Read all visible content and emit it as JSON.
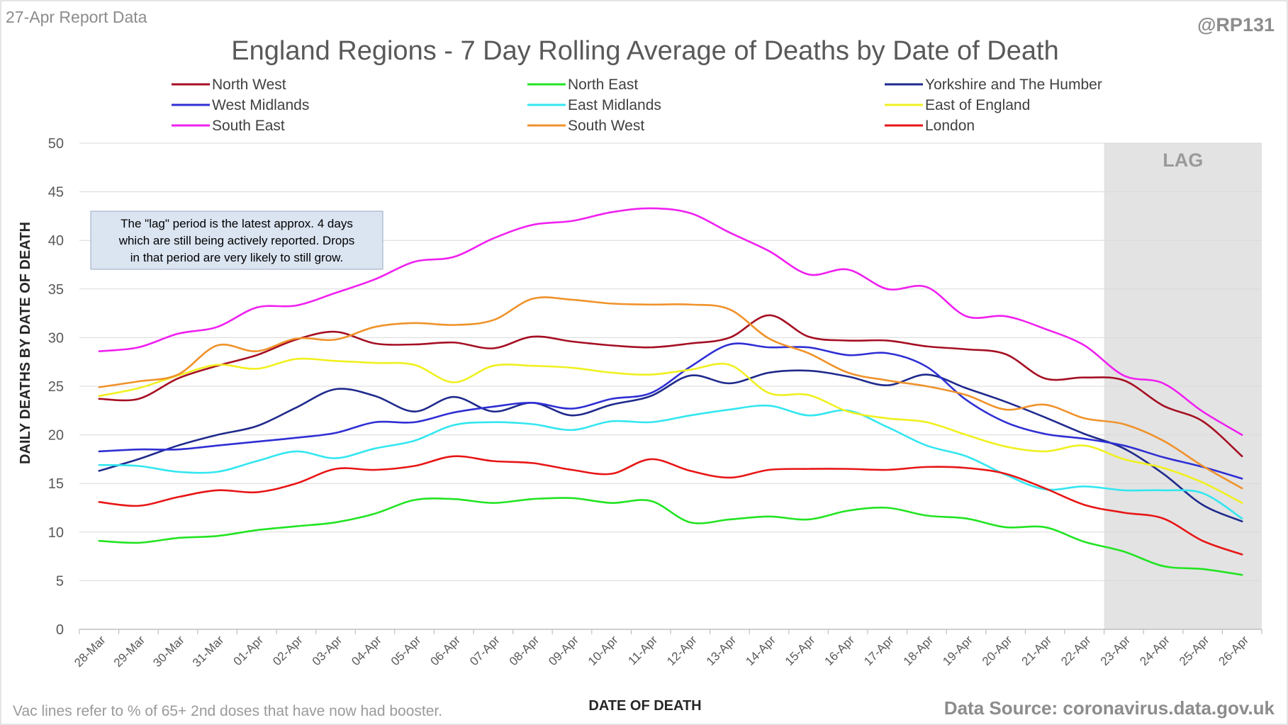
{
  "header": {
    "report_label": "27-Apr Report Data",
    "handle": "@RP131"
  },
  "footer": {
    "note": "Vac lines refer to % of 65+ 2nd doses that have now had booster.",
    "source": "Data Source: coronavirus.data.gov.uk"
  },
  "lag_box": {
    "label": "LAG",
    "start_category": "23-Apr",
    "fill_color": "#e3e3e3"
  },
  "annotation": {
    "lines": [
      "The \"lag\" period is the latest approx. 4 days",
      "which are still being actively reported.  Drops",
      "in that period are very likely to still grow."
    ],
    "fill_color": "#dbe4f1"
  },
  "chart_data": {
    "type": "line",
    "title": "England Regions - 7 Day Rolling Average of Deaths by Date of Death",
    "xlabel": "DATE OF DEATH",
    "ylabel": "DAILY DEATHS BY DATE OF DEATH",
    "ylim": [
      0,
      50
    ],
    "yticks": [
      0,
      5,
      10,
      15,
      20,
      25,
      30,
      35,
      40,
      45,
      50
    ],
    "grid": true,
    "legend_position": "top",
    "categories": [
      "28-Mar",
      "29-Mar",
      "30-Mar",
      "31-Mar",
      "01-Apr",
      "02-Apr",
      "03-Apr",
      "04-Apr",
      "05-Apr",
      "06-Apr",
      "07-Apr",
      "08-Apr",
      "09-Apr",
      "10-Apr",
      "11-Apr",
      "12-Apr",
      "13-Apr",
      "14-Apr",
      "15-Apr",
      "16-Apr",
      "17-Apr",
      "18-Apr",
      "19-Apr",
      "20-Apr",
      "21-Apr",
      "22-Apr",
      "23-Apr",
      "24-Apr",
      "25-Apr",
      "26-Apr"
    ],
    "series": [
      {
        "name": "North West",
        "color": "#a50f23",
        "values": [
          23.7,
          23.7,
          25.8,
          27.1,
          28.2,
          29.8,
          30.6,
          29.4,
          29.3,
          29.5,
          28.9,
          30.1,
          29.6,
          29.2,
          29.0,
          29.4,
          30.0,
          32.3,
          30.1,
          29.7,
          29.7,
          29.1,
          28.8,
          28.3,
          25.8,
          25.9,
          25.6,
          23.0,
          21.4,
          17.8
        ]
      },
      {
        "name": "North East",
        "color": "#22e422",
        "values": [
          9.1,
          8.9,
          9.4,
          9.6,
          10.2,
          10.6,
          11.0,
          11.9,
          13.3,
          13.4,
          13.0,
          13.4,
          13.5,
          13.0,
          13.2,
          11.0,
          11.3,
          11.6,
          11.3,
          12.2,
          12.5,
          11.7,
          11.4,
          10.5,
          10.5,
          9.0,
          8.0,
          6.5,
          6.2,
          5.6
        ]
      },
      {
        "name": "Yorkshire and The Humber",
        "color": "#1f2a8c",
        "values": [
          16.3,
          17.5,
          18.9,
          20.0,
          20.9,
          22.8,
          24.7,
          24.0,
          22.4,
          23.9,
          22.4,
          23.3,
          22.0,
          23.1,
          24.0,
          26.1,
          25.3,
          26.4,
          26.6,
          26.0,
          25.1,
          26.2,
          24.8,
          23.4,
          21.8,
          20.1,
          18.6,
          16.0,
          12.8,
          11.1
        ]
      },
      {
        "name": "West Midlands",
        "color": "#2f2fd4",
        "values": [
          18.3,
          18.5,
          18.5,
          18.9,
          19.3,
          19.7,
          20.2,
          21.3,
          21.3,
          22.3,
          22.9,
          23.3,
          22.7,
          23.7,
          24.3,
          27.0,
          29.3,
          29.0,
          29.0,
          28.2,
          28.4,
          27.0,
          23.6,
          21.3,
          20.1,
          19.6,
          18.9,
          17.7,
          16.7,
          15.5
        ]
      },
      {
        "name": "East Midlands",
        "color": "#33e6f0",
        "values": [
          16.9,
          16.8,
          16.2,
          16.2,
          17.3,
          18.3,
          17.6,
          18.6,
          19.4,
          21.0,
          21.3,
          21.1,
          20.5,
          21.4,
          21.3,
          22.0,
          22.6,
          23.0,
          22.0,
          22.5,
          20.8,
          18.9,
          17.8,
          15.9,
          14.4,
          14.7,
          14.3,
          14.3,
          14.0,
          11.4
        ]
      },
      {
        "name": "East of England",
        "color": "#f0f020",
        "values": [
          24.0,
          24.8,
          26.1,
          27.2,
          26.8,
          27.8,
          27.6,
          27.4,
          27.2,
          25.4,
          27.1,
          27.1,
          26.9,
          26.4,
          26.2,
          26.7,
          27.2,
          24.3,
          24.1,
          22.4,
          21.7,
          21.3,
          20.0,
          18.8,
          18.3,
          18.9,
          17.5,
          16.6,
          15.1,
          13.0
        ]
      },
      {
        "name": "South East",
        "color": "#f020f0",
        "values": [
          28.6,
          29.0,
          30.4,
          31.1,
          33.1,
          33.3,
          34.6,
          36.0,
          37.8,
          38.3,
          40.2,
          41.6,
          42.0,
          42.9,
          43.3,
          42.8,
          40.8,
          38.9,
          36.5,
          37.0,
          35.0,
          35.2,
          32.2,
          32.2,
          30.9,
          29.2,
          26.1,
          25.3,
          22.4,
          20.0
        ]
      },
      {
        "name": "South West",
        "color": "#f0922a",
        "values": [
          24.9,
          25.5,
          26.2,
          29.2,
          28.6,
          29.9,
          29.8,
          31.1,
          31.5,
          31.3,
          31.8,
          34.0,
          33.9,
          33.5,
          33.4,
          33.4,
          32.9,
          29.9,
          28.4,
          26.4,
          25.6,
          25.0,
          24.1,
          22.6,
          23.1,
          21.7,
          21.1,
          19.4,
          16.8,
          14.5
        ]
      },
      {
        "name": "London",
        "color": "#e81515",
        "values": [
          13.1,
          12.7,
          13.6,
          14.3,
          14.1,
          15.0,
          16.5,
          16.4,
          16.8,
          17.8,
          17.3,
          17.1,
          16.4,
          16.0,
          17.5,
          16.3,
          15.6,
          16.4,
          16.5,
          16.5,
          16.4,
          16.7,
          16.6,
          16.0,
          14.5,
          12.8,
          12.0,
          11.4,
          9.1,
          7.7
        ]
      }
    ]
  }
}
